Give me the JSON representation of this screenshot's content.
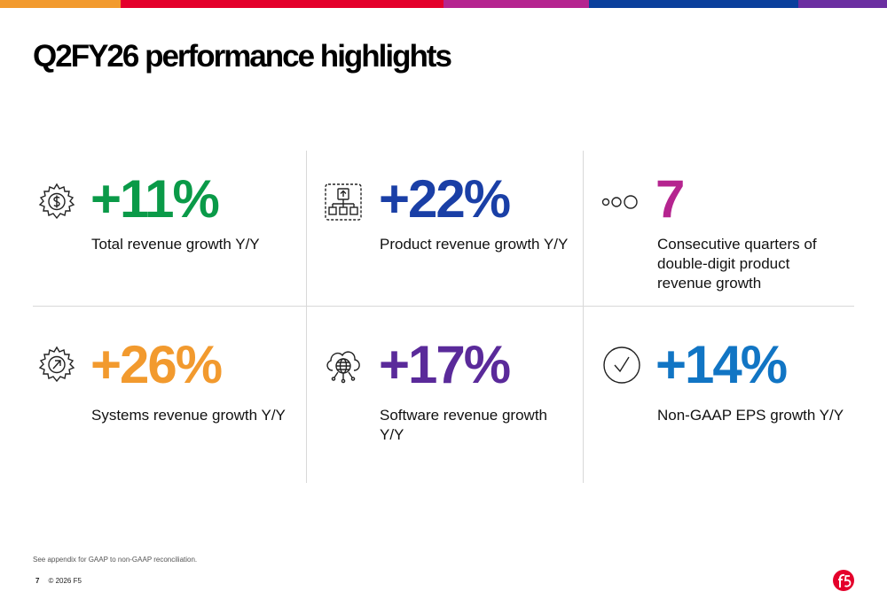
{
  "colors": {
    "bar": [
      "#f29a2e",
      "#e4002b",
      "#b5248f",
      "#0a3f9c",
      "#6b2fa1"
    ],
    "green": "#0a9a48",
    "blue": "#1a3fa6",
    "magenta": "#b5248f",
    "orange": "#f29a2e",
    "purple": "#5a2a9a",
    "lightblue": "#1175c4"
  },
  "title": "Q2FY26 performance highlights",
  "metrics": [
    {
      "value": "+11%",
      "label": "Total revenue growth Y/Y",
      "icon": "dollar-gear-icon"
    },
    {
      "value": "+22%",
      "label": "Product revenue growth Y/Y",
      "icon": "product-flow-icon"
    },
    {
      "value": "7",
      "label": "Consecutive quarters of double-digit product revenue growth",
      "icon": "three-circles-icon"
    },
    {
      "value": "+26%",
      "label": "Systems revenue growth Y/Y",
      "icon": "arrow-gear-icon"
    },
    {
      "value": "+17%",
      "label": "Software revenue growth Y/Y",
      "icon": "cloud-globe-icon"
    },
    {
      "value": "+14%",
      "label": "Non-GAAP EPS growth Y/Y",
      "icon": "checkmark-circle-icon"
    }
  ],
  "footnote": "See appendix for GAAP to non-GAAP reconciliation.",
  "footer": {
    "page": "7",
    "copyright": "© 2026 F5"
  },
  "logo": "f5-logo"
}
